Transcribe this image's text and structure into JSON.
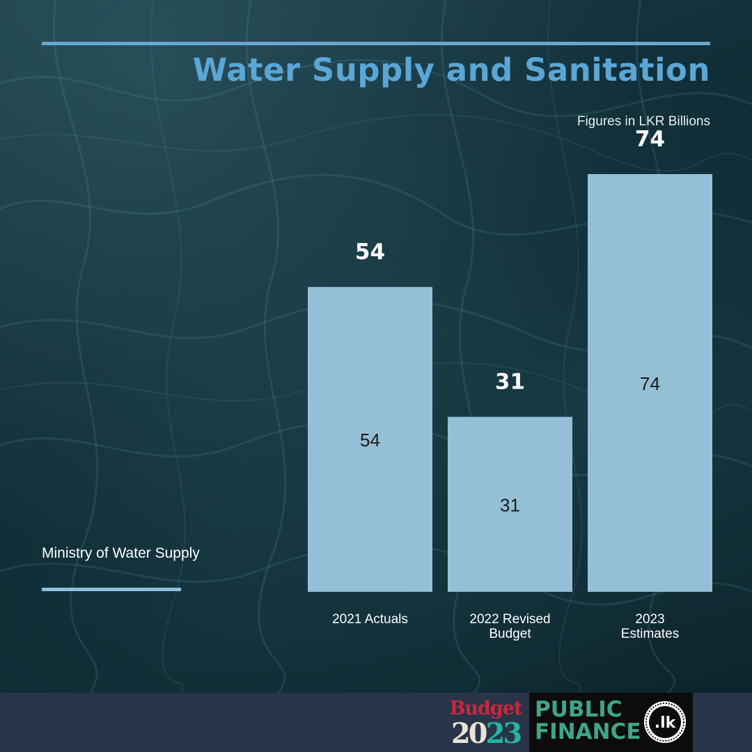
{
  "header": {
    "title": "Water Supply and Sanitation",
    "subtitle": "Figures in LKR Billions"
  },
  "side": {
    "label": "Ministry of Water Supply"
  },
  "chart_data": {
    "type": "bar",
    "title": "Water Supply and Sanitation",
    "subtitle": "Figures in LKR Billions",
    "categories": [
      [
        "2021 Actuals"
      ],
      [
        "2022 Revised",
        "Budget"
      ],
      [
        "2023",
        "Estimates"
      ]
    ],
    "series": [
      {
        "name": "Ministry of Water Supply",
        "values": [
          54,
          31,
          74
        ]
      }
    ],
    "xlabel": "",
    "ylabel": "",
    "ylim": [
      0,
      74
    ],
    "grid": false,
    "bar_color": "#95bfd7",
    "value_label_color": "#ffffff",
    "inner_label_color": "#1a1a1a"
  },
  "footer": {
    "budget_word": "Budget",
    "budget_year_a": "20",
    "budget_year_b": "2",
    "budget_year_c": "3",
    "pf_line1": "PUBLIC",
    "pf_line2": "FINANCE",
    "pf_seal_text": ".lk"
  }
}
